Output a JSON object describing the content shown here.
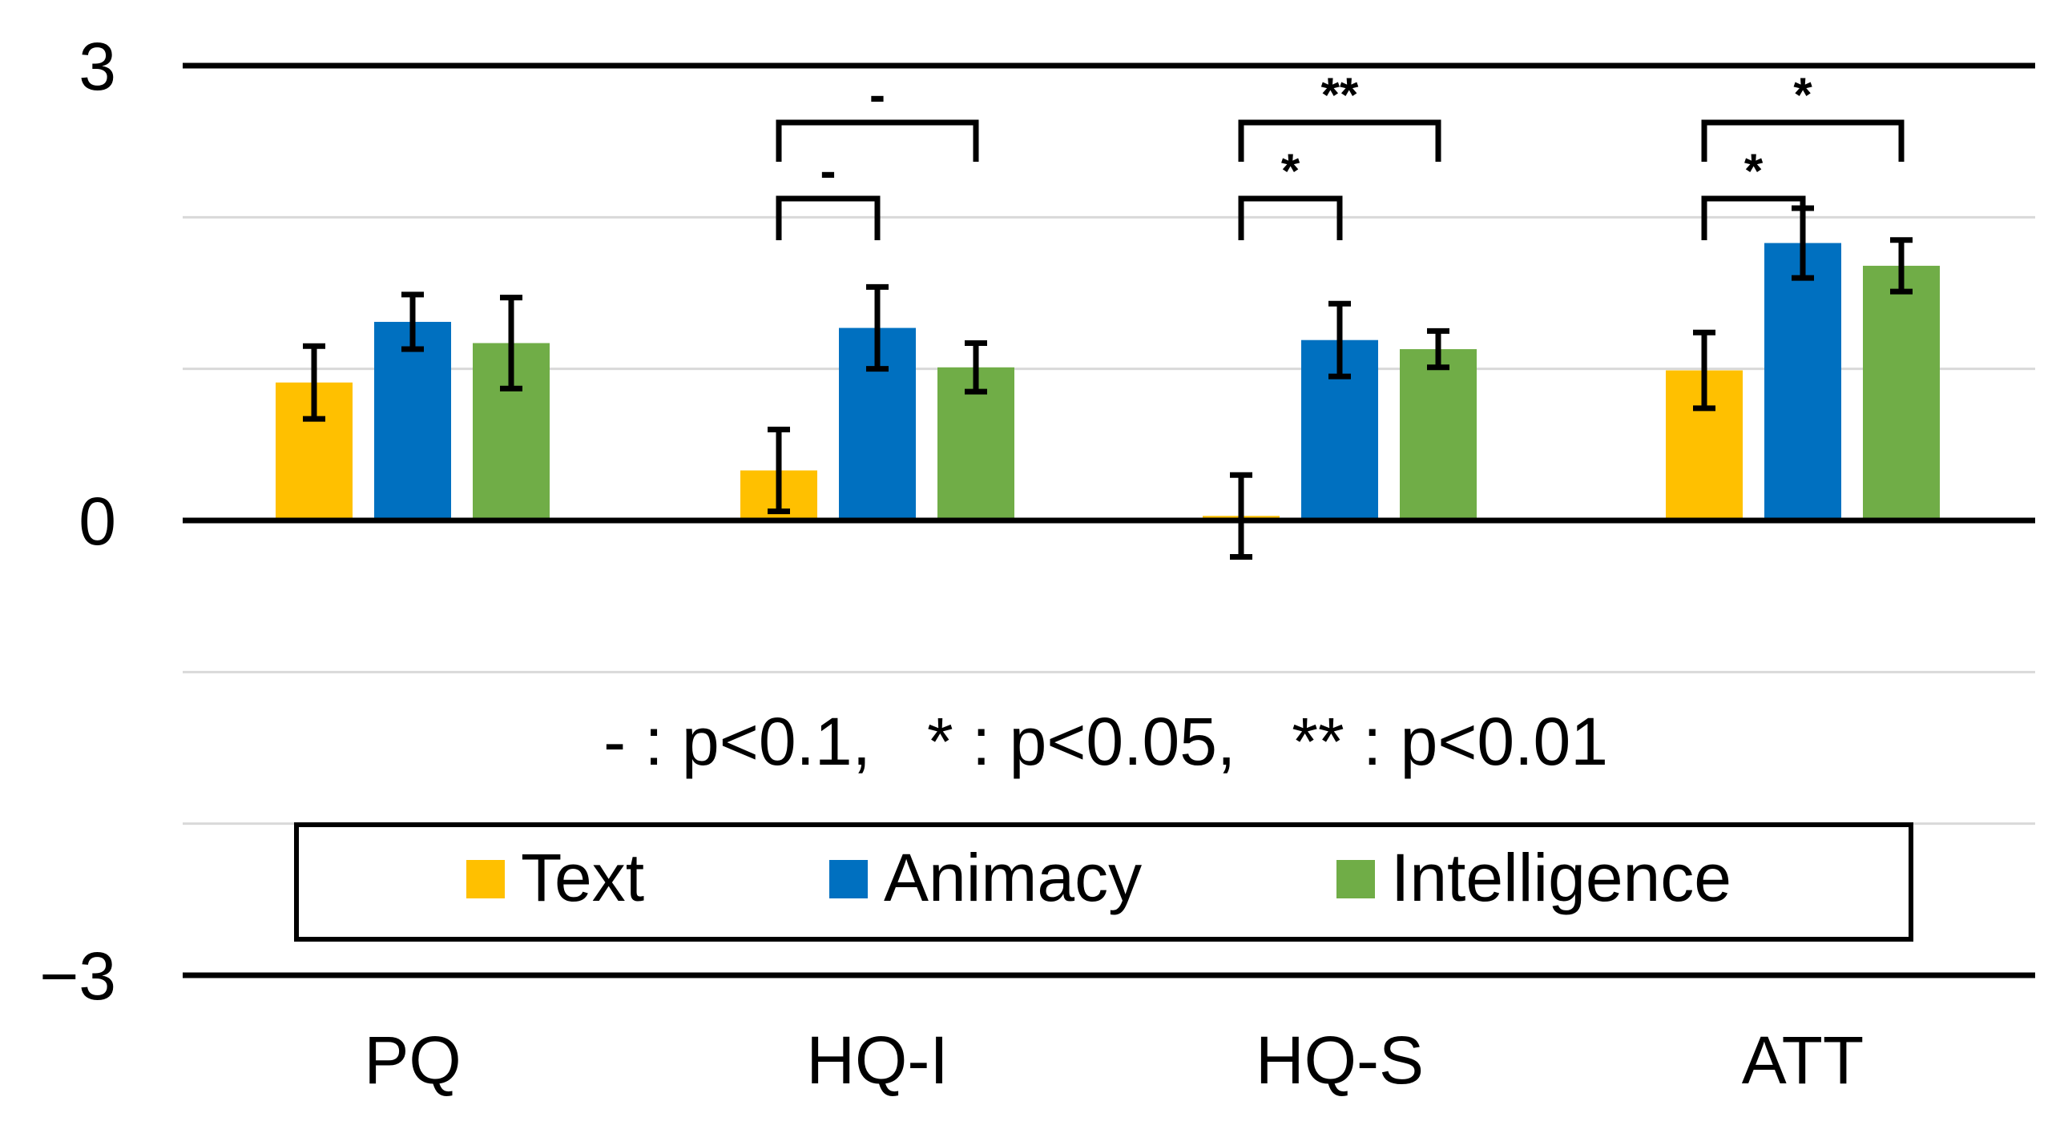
{
  "chart_data": {
    "type": "bar",
    "title": "",
    "xlabel": "",
    "ylabel": "",
    "categories": [
      "PQ",
      "HQ-I",
      "HQ-S",
      "ATT"
    ],
    "ylim": [
      -3,
      3
    ],
    "y_ticks": [
      {
        "value": 3,
        "label": "3"
      },
      {
        "value": 0,
        "label": "0"
      },
      {
        "value": -3,
        "label": "−3"
      }
    ],
    "gridlines": [
      -2,
      -1,
      1,
      2
    ],
    "series": [
      {
        "name": "Text",
        "color": "#FFC000",
        "values": [
          0.91,
          0.33,
          0.03,
          0.99
        ],
        "errors": [
          0.24,
          0.27,
          0.27,
          0.25
        ]
      },
      {
        "name": "Animacy",
        "color": "#0070C0",
        "values": [
          1.31,
          1.27,
          1.19,
          1.83
        ],
        "errors": [
          0.18,
          0.27,
          0.24,
          0.23
        ]
      },
      {
        "name": "Intelligence",
        "color": "#70AD47",
        "values": [
          1.17,
          1.01,
          1.13,
          1.68
        ],
        "errors": [
          0.3,
          0.16,
          0.12,
          0.17
        ]
      }
    ],
    "significance": [
      {
        "category": "HQ-I",
        "from": "Text",
        "to": "Animacy",
        "label": "-"
      },
      {
        "category": "HQ-I",
        "from": "Text",
        "to": "Intelligence",
        "label": "-"
      },
      {
        "category": "HQ-S",
        "from": "Text",
        "to": "Animacy",
        "label": "*"
      },
      {
        "category": "HQ-S",
        "from": "Text",
        "to": "Intelligence",
        "label": "**"
      },
      {
        "category": "ATT",
        "from": "Text",
        "to": "Animacy",
        "label": "*"
      },
      {
        "category": "ATT",
        "from": "Text",
        "to": "Intelligence",
        "label": "*"
      }
    ],
    "annotation": "- : p<0.1,   * : p<0.05,   ** : p<0.01",
    "legend": {
      "placement": "bottom-center",
      "entries": [
        "Text",
        "Animacy",
        "Intelligence"
      ]
    }
  }
}
